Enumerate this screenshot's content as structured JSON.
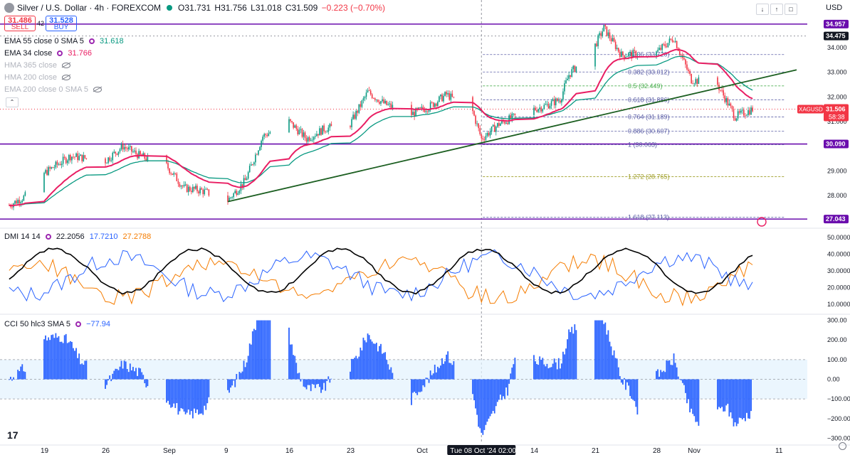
{
  "header": {
    "symbol": "Silver / U.S. Dollar · 4h · FOREXCOM",
    "open": "O31.731",
    "high": "H31.756",
    "low": "L31.018",
    "close": "C31.509",
    "change": "−0.223 (−0.70%)",
    "sell_price": "31.486",
    "sell_label": "SELL",
    "buy_price": "31.528",
    "buy_label": "BUY",
    "spread": "42",
    "currency": "USD"
  },
  "indicators": [
    {
      "label": "EMA 55 close 0 SMA 5",
      "value": "31.618",
      "color": "#089981",
      "visible": true
    },
    {
      "label": "EMA 34 close",
      "value": "31.766",
      "color": "#e91e63",
      "visible": true
    },
    {
      "label": "HMA 365 close",
      "value": "",
      "visible": false
    },
    {
      "label": "HMA 200 close",
      "value": "",
      "visible": false
    },
    {
      "label": "EMA 200 close 0 SMA 5",
      "value": "",
      "visible": false
    }
  ],
  "dmi_header": {
    "label": "DMI 14 14",
    "adx": "22.2056",
    "plus_di": "17.7210",
    "minus_di": "27.2788"
  },
  "cci_header": {
    "label": "CCI 50 hlc3 SMA 5",
    "value": "−77.94"
  },
  "time_labels": [
    "19",
    "26",
    "Sep",
    "9",
    "16",
    "23",
    "Oct",
    "14",
    "21",
    "28",
    "Nov",
    "11"
  ],
  "crosshair_label": "Tue 08 Oct '24  02:00",
  "price_labels": [
    {
      "text": "34.957",
      "style": "purple"
    },
    {
      "text": "34.475",
      "style": "black"
    },
    {
      "text": "XAGUSD",
      "style": "red"
    },
    {
      "text": "31.506",
      "style": "red"
    },
    {
      "text": "58:38",
      "style": "red"
    },
    {
      "text": "30.090",
      "style": "purple"
    },
    {
      "text": "27.043",
      "style": "purple"
    }
  ],
  "colors": {
    "up": "#089981",
    "down": "#f23645",
    "ema34": "#e91e63",
    "ema55": "#089981",
    "hline": "#6a0dad",
    "trend": "#1b5e20",
    "fib": "#5b5ea6",
    "adx": "#000000",
    "plus_di": "#2962ff",
    "minus_di": "#f57c00",
    "cci": "#2962ff"
  },
  "chart_data": [
    {
      "type": "candlestick",
      "title": "Silver / U.S. Dollar · 4h · FOREXCOM",
      "x_ticks": [
        "19",
        "26",
        "Sep",
        "9",
        "16",
        "23",
        "Oct",
        "14",
        "21",
        "28",
        "Nov",
        "11"
      ],
      "y_ticks": [
        "34.000",
        "33.000",
        "32.000",
        "31.000",
        "29.000",
        "28.000"
      ],
      "ylim": [
        26.7,
        35.3
      ],
      "close_path": [
        {
          "x": "Aug 15",
          "y": 27.6
        },
        {
          "x": "Aug 17",
          "y": 28.0
        },
        {
          "x": "Aug 19",
          "y": 28.9
        },
        {
          "x": "Aug 22",
          "y": 29.6
        },
        {
          "x": "Aug 26",
          "y": 29.4
        },
        {
          "x": "Aug 28",
          "y": 30.0
        },
        {
          "x": "Aug 30",
          "y": 29.6
        },
        {
          "x": "Sep 2",
          "y": 29.2
        },
        {
          "x": "Sep 4",
          "y": 28.3
        },
        {
          "x": "Sep 6",
          "y": 28.2
        },
        {
          "x": "Sep 9",
          "y": 27.8
        },
        {
          "x": "Sep 11",
          "y": 28.6
        },
        {
          "x": "Sep 13",
          "y": 30.4
        },
        {
          "x": "Sep 16",
          "y": 31.0
        },
        {
          "x": "Sep 18",
          "y": 30.3
        },
        {
          "x": "Sep 20",
          "y": 30.7
        },
        {
          "x": "Sep 23",
          "y": 30.9
        },
        {
          "x": "Sep 25",
          "y": 32.2
        },
        {
          "x": "Sep 27",
          "y": 31.7
        },
        {
          "x": "Sep 30",
          "y": 31.3
        },
        {
          "x": "Oct 2",
          "y": 31.6
        },
        {
          "x": "Oct 4",
          "y": 32.1
        },
        {
          "x": "Oct 7",
          "y": 31.4
        },
        {
          "x": "Oct 8",
          "y": 30.3
        },
        {
          "x": "Oct 10",
          "y": 30.9
        },
        {
          "x": "Oct 13",
          "y": 31.4
        },
        {
          "x": "Oct 15",
          "y": 31.6
        },
        {
          "x": "Oct 17",
          "y": 31.9
        },
        {
          "x": "Oct 18",
          "y": 32.9
        },
        {
          "x": "Oct 21",
          "y": 34.1
        },
        {
          "x": "Oct 22",
          "y": 34.8
        },
        {
          "x": "Oct 24",
          "y": 33.7
        },
        {
          "x": "Oct 28",
          "y": 33.8
        },
        {
          "x": "Oct 30",
          "y": 34.4
        },
        {
          "x": "Nov 1",
          "y": 32.7
        },
        {
          "x": "Nov 4",
          "y": 32.5
        },
        {
          "x": "Nov 6",
          "y": 31.2
        },
        {
          "x": "Nov 8",
          "y": 31.5
        }
      ],
      "series": [
        {
          "name": "EMA 34 close",
          "last": 31.766
        },
        {
          "name": "EMA 55 close 0 SMA 5",
          "last": 31.618
        }
      ],
      "horizontal_levels": [
        34.957,
        30.09,
        27.043
      ],
      "last_price": 31.506,
      "fib_levels": [
        {
          "ratio": "0.236",
          "text": "0.236 (33.720)",
          "price": 33.72
        },
        {
          "ratio": "0.382",
          "text": "0.382 (33.012)",
          "price": 33.012
        },
        {
          "ratio": "0.5",
          "text": "0.5 (32.449)",
          "price": 32.449
        },
        {
          "ratio": "0.618",
          "text": "0.618 (31.886)",
          "price": 31.886
        },
        {
          "ratio": "0.764",
          "text": "0.764 (31.189)",
          "price": 31.189
        },
        {
          "ratio": "0.886",
          "text": "0.886 (30.607)",
          "price": 30.607
        },
        {
          "ratio": "1",
          "text": "1 (30.063)",
          "price": 30.063
        },
        {
          "ratio": "1.272",
          "text": "1.272 (28.765)",
          "price": 28.765
        },
        {
          "ratio": "1.618",
          "text": "1.618 (27.113)",
          "price": 27.113
        }
      ],
      "trendline": {
        "start": {
          "x": "Sep 9",
          "y": 27.75
        },
        "end": {
          "x": "Nov 11",
          "y": 33.1
        }
      }
    },
    {
      "type": "line",
      "title": "DMI 14 14",
      "y_ticks": [
        "50.0000",
        "40.0000",
        "30.0000",
        "20.0000",
        "10.0000"
      ],
      "ylim": [
        5,
        55
      ],
      "series": [
        {
          "name": "ADX",
          "last": 22.2056
        },
        {
          "name": "+DI",
          "last": 17.721
        },
        {
          "name": "−DI",
          "last": 27.2788
        }
      ]
    },
    {
      "type": "bar",
      "title": "CCI 50 hlc3 SMA 5",
      "y_ticks": [
        "300.00",
        "200.00",
        "100.00",
        "0.00",
        "−100.00",
        "−200.00",
        "−300.00"
      ],
      "ylim": [
        -320,
        320
      ],
      "band": [
        -100,
        100
      ],
      "last": -77.94
    }
  ]
}
